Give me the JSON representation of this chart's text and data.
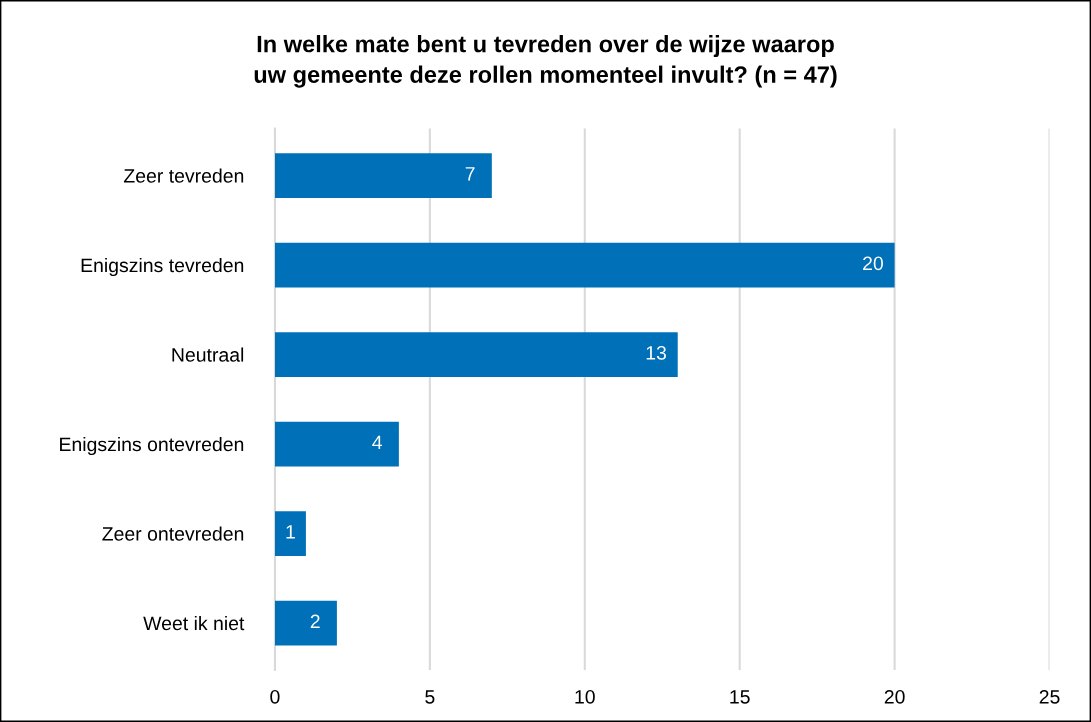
{
  "chart_data": {
    "type": "bar",
    "orientation": "horizontal",
    "title": "In welke mate bent u tevreden over de wijze waarop uw gemeente deze rollen momenteel invult? (n = 47)",
    "categories": [
      "Zeer tevreden",
      "Enigszins tevreden",
      "Neutraal",
      "Enigszins ontevreden",
      "Zeer ontevreden",
      "Weet ik niet"
    ],
    "values": [
      7,
      20,
      13,
      4,
      1,
      2
    ],
    "color": "#0070b8",
    "xlim": [
      0,
      25
    ],
    "xticks": [
      0,
      5,
      10,
      15,
      20,
      25
    ],
    "grid": "x",
    "data_labels": true
  }
}
